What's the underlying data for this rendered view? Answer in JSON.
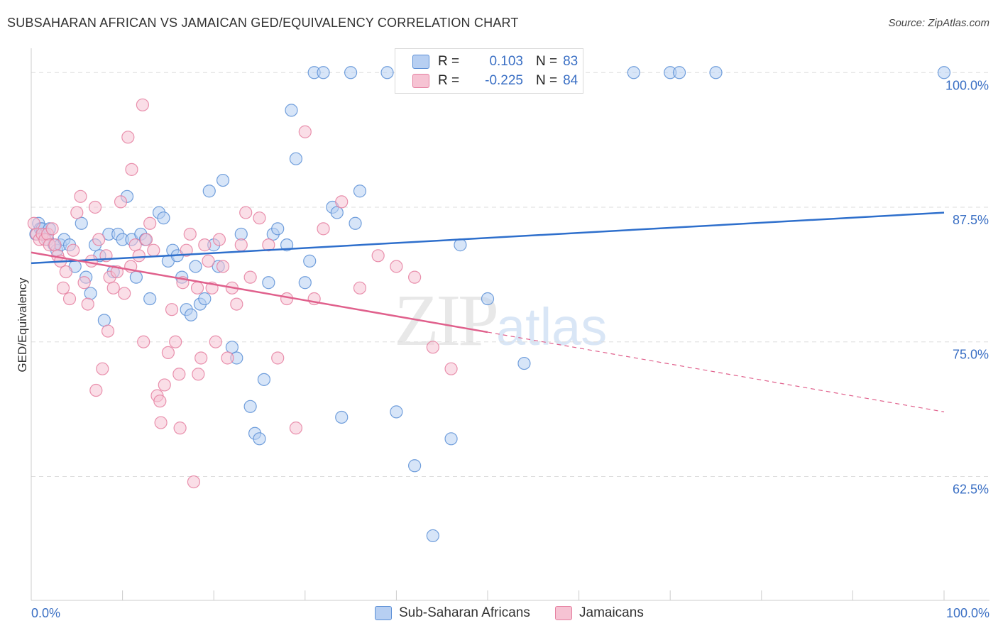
{
  "header": {
    "title": "SUBSAHARAN AFRICAN VS JAMAICAN GED/EQUIVALENCY CORRELATION CHART",
    "source": "Source: ZipAtlas.com"
  },
  "watermark": {
    "zip": "ZIP",
    "atlas": "atlas"
  },
  "legend": {
    "r_label": "R =",
    "n_label": "N =",
    "rows": [
      {
        "r": "0.103",
        "n": "83",
        "color": "#b7cff2"
      },
      {
        "r": "-0.225",
        "n": "84",
        "color": "#f6c3d3"
      }
    ]
  },
  "bottom_legend": [
    {
      "label": "Sub-Saharan Africans",
      "color": "#b7cff2"
    },
    {
      "label": "Jamaicans",
      "color": "#f6c3d3"
    }
  ],
  "chart_data": {
    "type": "scatter",
    "title": "SUBSAHARAN AFRICAN VS JAMAICAN GED/EQUIVALENCY CORRELATION CHART",
    "ylabel": "GED/Equivalency",
    "xlabel": "",
    "xlim": [
      0,
      100
    ],
    "ylim": [
      51.0,
      101.5
    ],
    "x_tick_labels": [
      "0.0%",
      "100.0%"
    ],
    "y_ticks": [
      62.5,
      75.0,
      87.5,
      100.0
    ],
    "y_tick_labels": [
      "62.5%",
      "75.0%",
      "87.5%",
      "100.0%"
    ],
    "grid": "horizontal dashed",
    "legend_position": "top-center",
    "series": [
      {
        "name": "Sub-Saharan Africans",
        "color": "#5b8fd6",
        "fill": "#b7cff2",
        "trend": {
          "x": [
            0,
            100
          ],
          "y": [
            82.3,
            87.0
          ],
          "color": "#2e6fcc"
        },
        "x": [
          0.5,
          0.8,
          1.0,
          1.2,
          1.5,
          1.8,
          2.0,
          2.5,
          2.8,
          3.2,
          3.6,
          4.2,
          4.8,
          5.5,
          6.0,
          6.5,
          7.0,
          7.5,
          8.0,
          8.5,
          9.0,
          9.5,
          10.0,
          10.5,
          11.0,
          11.5,
          12.0,
          12.5,
          13.0,
          14.0,
          14.5,
          15.0,
          15.5,
          16.0,
          16.5,
          17.0,
          17.5,
          18.0,
          18.5,
          19.0,
          19.5,
          20.0,
          20.5,
          21.0,
          22.0,
          22.5,
          23.0,
          24.0,
          24.5,
          25.0,
          25.5,
          26.0,
          26.5,
          27.0,
          28.0,
          28.5,
          29.0,
          30.0,
          30.5,
          31.0,
          32.0,
          33.0,
          33.5,
          34.0,
          35.0,
          35.5,
          36.0,
          39.0,
          40.0,
          42.0,
          43.0,
          44.0,
          46.0,
          47.0,
          50.0,
          54.0,
          55.0,
          57.0,
          66.0,
          70.0,
          71.0,
          75.0,
          100.0
        ],
        "y": [
          85.0,
          86.0,
          85.5,
          85.5,
          85.0,
          84.5,
          85.5,
          84.0,
          83.5,
          84.0,
          84.5,
          84.0,
          82.0,
          86.0,
          81.0,
          79.5,
          84.0,
          83.0,
          77.0,
          85.0,
          81.5,
          85.0,
          84.5,
          88.5,
          84.5,
          81.0,
          85.0,
          84.5,
          79.0,
          87.0,
          86.5,
          82.5,
          83.5,
          83.0,
          81.0,
          78.0,
          77.5,
          82.0,
          78.5,
          79.0,
          89.0,
          84.0,
          82.0,
          90.0,
          74.5,
          73.5,
          85.0,
          69.0,
          66.5,
          66.0,
          71.5,
          80.5,
          85.0,
          85.5,
          84.0,
          96.5,
          92.0,
          80.5,
          82.5,
          100.0,
          100.0,
          87.5,
          87.0,
          68.0,
          100.0,
          86.0,
          89.0,
          100.0,
          68.5,
          63.5,
          100.0,
          57.0,
          66.0,
          84.0,
          79.0,
          73.0,
          100.0,
          100.0,
          100.0,
          100.0,
          100.0,
          100.0,
          100.0
        ]
      },
      {
        "name": "Jamaicans",
        "color": "#e57fa0",
        "fill": "#f6c3d3",
        "trend": {
          "x": [
            0,
            100
          ],
          "y": [
            83.3,
            68.5
          ],
          "solid_until_x": 50,
          "color": "#e0608c"
        },
        "x": [
          0.3,
          0.6,
          0.9,
          1.2,
          1.5,
          1.8,
          2.0,
          2.3,
          2.6,
          2.9,
          3.2,
          3.5,
          3.8,
          4.2,
          4.6,
          5.0,
          5.4,
          5.8,
          6.2,
          6.6,
          7.0,
          7.4,
          7.8,
          8.2,
          8.6,
          9.0,
          9.4,
          9.8,
          10.2,
          10.6,
          11.0,
          11.4,
          11.8,
          12.2,
          12.6,
          13.0,
          13.4,
          13.8,
          14.2,
          14.6,
          15.0,
          15.4,
          15.8,
          16.2,
          16.6,
          17.0,
          17.4,
          17.8,
          18.2,
          18.6,
          19.0,
          19.4,
          19.8,
          20.2,
          20.6,
          21.0,
          21.5,
          22.0,
          22.5,
          23.0,
          23.5,
          24.0,
          25.0,
          26.0,
          27.0,
          28.0,
          29.0,
          30.0,
          31.0,
          32.0,
          34.0,
          36.0,
          38.0,
          40.0,
          42.0,
          44.0,
          46.0,
          7.1,
          8.4,
          10.9,
          12.3,
          14.1,
          16.3,
          18.3
        ],
        "y": [
          86.0,
          85.0,
          84.5,
          85.0,
          84.5,
          85.0,
          84.0,
          85.5,
          84.0,
          83.0,
          82.5,
          80.0,
          81.5,
          79.0,
          83.5,
          87.0,
          88.5,
          80.5,
          78.5,
          82.5,
          87.5,
          84.5,
          72.5,
          83.0,
          81.0,
          80.0,
          81.5,
          88.0,
          79.5,
          94.0,
          91.0,
          84.0,
          83.0,
          97.0,
          84.5,
          86.0,
          83.5,
          70.0,
          67.5,
          71.0,
          74.0,
          78.0,
          75.0,
          72.0,
          80.5,
          83.5,
          85.0,
          62.0,
          80.0,
          73.5,
          84.0,
          82.5,
          80.0,
          75.0,
          84.5,
          82.0,
          73.5,
          80.0,
          78.5,
          84.0,
          87.0,
          81.0,
          86.5,
          84.0,
          73.5,
          79.0,
          67.0,
          94.5,
          79.0,
          85.5,
          88.0,
          80.0,
          83.0,
          82.0,
          81.0,
          74.5,
          72.5,
          70.5,
          76.0,
          82.0,
          75.0,
          69.5,
          67.0,
          72.0
        ]
      }
    ]
  }
}
